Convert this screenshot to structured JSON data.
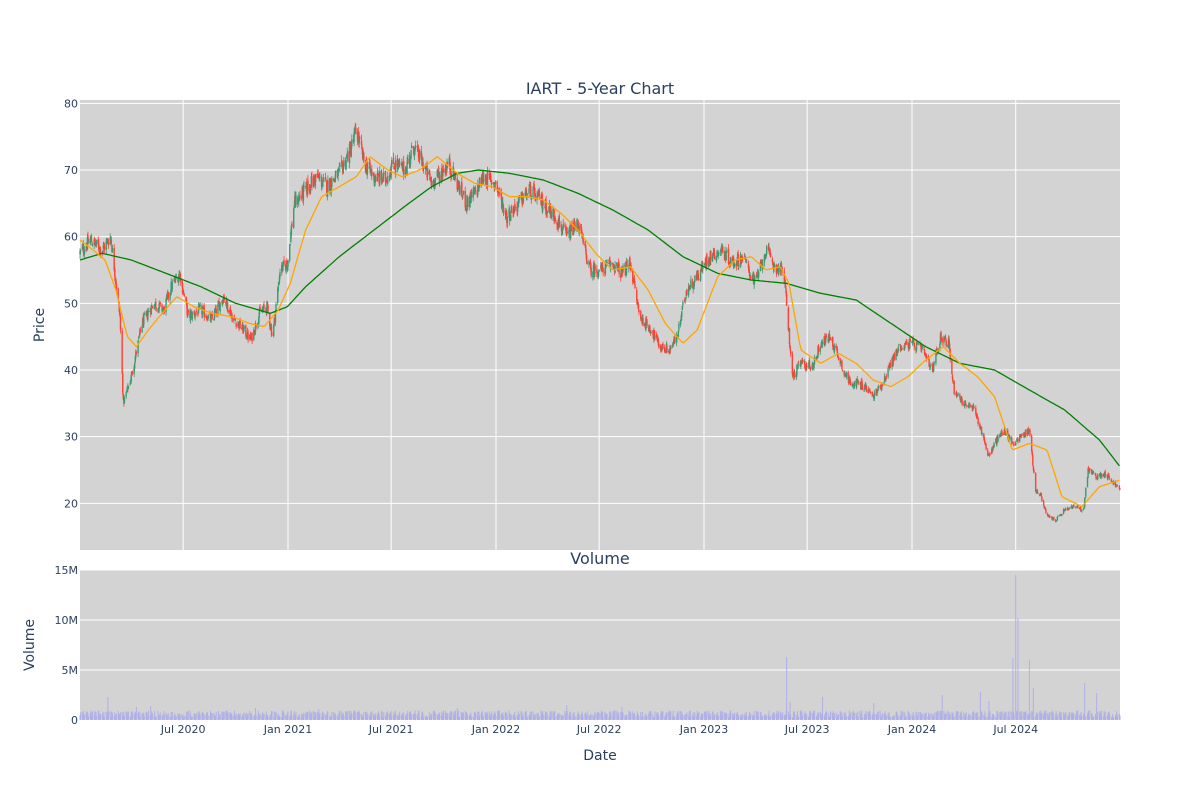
{
  "chart_data": [
    {
      "type": "candlestick",
      "title": "IART - 5-Year Chart",
      "ylabel": "Price",
      "ylim": [
        13,
        80.5
      ],
      "yticks": [
        20,
        30,
        40,
        50,
        60,
        70,
        80
      ],
      "grid": true,
      "legend": "none",
      "colors": {
        "up": "#3d9970",
        "down": "#ff4136",
        "ma_short": "#ffa500",
        "ma_long": "#008000",
        "plot_bg": "#d3d3d3"
      },
      "close_anchors": {
        "dates": [
          "2020-01-02",
          "2020-01-20",
          "2020-02-10",
          "2020-02-25",
          "2020-03-12",
          "2020-03-18",
          "2020-04-01",
          "2020-04-20",
          "2020-05-10",
          "2020-05-28",
          "2020-06-10",
          "2020-06-25",
          "2020-07-10",
          "2020-08-01",
          "2020-08-20",
          "2020-09-10",
          "2020-09-25",
          "2020-10-10",
          "2020-10-28",
          "2020-11-12",
          "2020-11-25",
          "2020-12-05",
          "2020-12-18",
          "2020-12-31",
          "2021-01-12",
          "2021-02-01",
          "2021-02-20",
          "2021-03-10",
          "2021-04-01",
          "2021-04-20",
          "2021-05-01",
          "2021-05-15",
          "2021-06-01",
          "2021-06-20",
          "2021-07-05",
          "2021-07-25",
          "2021-08-10",
          "2021-08-25",
          "2021-09-10",
          "2021-09-25",
          "2021-10-10",
          "2021-10-25",
          "2021-11-10",
          "2021-11-25",
          "2021-12-10",
          "2021-12-31",
          "2022-01-20",
          "2022-02-10",
          "2022-03-01",
          "2022-03-25",
          "2022-04-15",
          "2022-05-05",
          "2022-05-25",
          "2022-06-15",
          "2022-07-05",
          "2022-07-25",
          "2022-08-10",
          "2022-08-25",
          "2022-09-10",
          "2022-10-01",
          "2022-10-15",
          "2022-11-01",
          "2022-11-15",
          "2022-12-01",
          "2022-12-20",
          "2023-01-10",
          "2023-02-01",
          "2023-02-20",
          "2023-03-10",
          "2023-04-01",
          "2023-04-20",
          "2023-05-05",
          "2023-05-20",
          "2023-05-26",
          "2023-06-05",
          "2023-06-20",
          "2023-07-10",
          "2023-07-25",
          "2023-08-10",
          "2023-08-25",
          "2023-09-10",
          "2023-09-25",
          "2023-10-10",
          "2023-10-25",
          "2023-11-10",
          "2023-11-25",
          "2023-12-10",
          "2023-12-31",
          "2024-01-20",
          "2024-02-05",
          "2024-02-20",
          "2024-03-05",
          "2024-03-15",
          "2024-04-01",
          "2024-04-20",
          "2024-05-05",
          "2024-05-15",
          "2024-05-25",
          "2024-06-10",
          "2024-06-25",
          "2024-07-10",
          "2024-07-25",
          "2024-08-05",
          "2024-08-15",
          "2024-08-25",
          "2024-09-10",
          "2024-09-25",
          "2024-10-10",
          "2024-10-28",
          "2024-11-05",
          "2024-11-20",
          "2024-12-05",
          "2024-12-31"
        ],
        "close": [
          57.5,
          59.5,
          58.0,
          60.0,
          48.0,
          35.0,
          39.0,
          47.0,
          50.0,
          49.0,
          52.5,
          54.5,
          48.0,
          49.0,
          47.5,
          51.0,
          48.0,
          46.5,
          44.5,
          48.5,
          49.5,
          45.0,
          55.0,
          56.0,
          65.0,
          67.0,
          69.0,
          67.5,
          69.5,
          73.0,
          76.0,
          71.0,
          69.0,
          68.5,
          71.0,
          70.0,
          73.5,
          71.0,
          68.0,
          69.5,
          71.0,
          68.0,
          65.0,
          66.5,
          69.0,
          68.0,
          63.0,
          65.0,
          67.0,
          65.0,
          63.0,
          60.0,
          62.0,
          55.0,
          55.0,
          56.0,
          54.5,
          56.0,
          48.0,
          46.0,
          43.5,
          43.0,
          45.0,
          52.0,
          54.0,
          57.0,
          58.0,
          56.0,
          57.0,
          53.0,
          58.0,
          55.5,
          55.0,
          50.0,
          39.0,
          41.0,
          40.5,
          44.0,
          45.0,
          42.0,
          38.5,
          38.0,
          37.5,
          36.0,
          38.0,
          41.0,
          43.5,
          44.0,
          43.0,
          40.0,
          45.0,
          44.0,
          37.0,
          35.0,
          34.0,
          30.0,
          27.0,
          29.0,
          31.0,
          29.0,
          30.0,
          31.0,
          22.0,
          21.0,
          18.0,
          17.5,
          19.0,
          19.5,
          19.0,
          25.0,
          24.0,
          24.5,
          22.0
        ]
      },
      "ma_short_anchors": {
        "dates": [
          "2020-01-02",
          "2020-01-25",
          "2020-02-15",
          "2020-03-05",
          "2020-03-25",
          "2020-04-10",
          "2020-05-01",
          "2020-05-25",
          "2020-06-20",
          "2020-07-20",
          "2020-08-20",
          "2020-09-25",
          "2020-10-25",
          "2020-11-20",
          "2020-12-15",
          "2021-01-05",
          "2021-02-01",
          "2021-03-01",
          "2021-04-01",
          "2021-05-01",
          "2021-05-25",
          "2021-06-25",
          "2021-07-20",
          "2021-08-20",
          "2021-09-20",
          "2021-10-25",
          "2021-11-25",
          "2021-12-25",
          "2022-01-25",
          "2022-02-25",
          "2022-03-25",
          "2022-04-25",
          "2022-05-25",
          "2022-06-25",
          "2022-07-25",
          "2022-08-25",
          "2022-09-25",
          "2022-10-25",
          "2022-11-25",
          "2022-12-20",
          "2023-01-25",
          "2023-02-25",
          "2023-03-25",
          "2023-04-20",
          "2023-05-15",
          "2023-05-30",
          "2023-06-20",
          "2023-07-25",
          "2023-08-25",
          "2023-09-25",
          "2023-10-25",
          "2023-11-25",
          "2023-12-25",
          "2024-01-25",
          "2024-02-25",
          "2024-03-25",
          "2024-04-25",
          "2024-05-25",
          "2024-06-25",
          "2024-07-25",
          "2024-08-25",
          "2024-09-20",
          "2024-10-25",
          "2024-11-25",
          "2024-12-31"
        ],
        "values": [
          59.5,
          58.0,
          56.5,
          52.0,
          45.0,
          43.5,
          46.0,
          48.5,
          51.0,
          49.5,
          48.5,
          48.0,
          47.0,
          46.5,
          49.0,
          53.0,
          61.0,
          66.0,
          67.5,
          69.0,
          72.0,
          70.0,
          69.0,
          70.0,
          72.0,
          69.5,
          68.0,
          67.5,
          66.0,
          66.0,
          65.5,
          63.5,
          61.0,
          57.5,
          55.0,
          55.5,
          52.0,
          47.0,
          44.0,
          46.0,
          54.0,
          56.5,
          57.0,
          55.0,
          55.5,
          53.0,
          43.0,
          41.0,
          42.5,
          41.0,
          38.5,
          37.5,
          39.0,
          41.5,
          43.5,
          41.0,
          39.0,
          36.0,
          28.0,
          29.0,
          28.0,
          21.0,
          19.5,
          22.5,
          23.5
        ]
      },
      "ma_long_anchors": {
        "dates": [
          "2020-01-02",
          "2020-02-10",
          "2020-04-01",
          "2020-06-01",
          "2020-08-01",
          "2020-10-01",
          "2020-12-01",
          "2020-12-31",
          "2021-02-01",
          "2021-04-01",
          "2021-06-01",
          "2021-08-01",
          "2021-09-10",
          "2021-10-25",
          "2021-12-01",
          "2022-01-25",
          "2022-03-25",
          "2022-05-25",
          "2022-07-25",
          "2022-09-25",
          "2022-11-25",
          "2023-01-25",
          "2023-03-25",
          "2023-05-25",
          "2023-07-25",
          "2023-09-25",
          "2023-11-25",
          "2024-01-25",
          "2024-03-25",
          "2024-05-25",
          "2024-07-25",
          "2024-09-25",
          "2024-11-25",
          "2024-12-31"
        ],
        "values": [
          56.5,
          57.5,
          56.5,
          54.5,
          52.5,
          50.0,
          48.5,
          49.5,
          52.5,
          57.0,
          61.0,
          65.0,
          67.5,
          69.5,
          70.0,
          69.5,
          68.5,
          66.5,
          64.0,
          61.0,
          57.0,
          54.5,
          53.5,
          53.0,
          51.5,
          50.5,
          47.0,
          43.5,
          41.0,
          40.0,
          37.0,
          34.0,
          29.5,
          25.5
        ]
      },
      "date_range": [
        "2020-01-02",
        "2024-12-31"
      ]
    },
    {
      "type": "bar",
      "title": "Volume",
      "xlabel": "Date",
      "ylabel": "Volume",
      "ylim": [
        0,
        15000000
      ],
      "yticks": [
        0,
        5000000,
        10000000,
        15000000
      ],
      "ytick_labels": [
        "0",
        "5M",
        "10M",
        "15M"
      ],
      "xtick_labels": [
        "Jul 2020",
        "Jan 2021",
        "Jul 2021",
        "Jan 2022",
        "Jul 2022",
        "Jan 2023",
        "Jul 2023",
        "Jan 2024",
        "Jul 2024"
      ],
      "xtick_dates": [
        "2020-07-01",
        "2021-01-01",
        "2021-07-01",
        "2022-01-01",
        "2022-07-01",
        "2023-01-01",
        "2023-07-01",
        "2024-01-01",
        "2024-07-01"
      ],
      "grid": true,
      "colors": {
        "bar": "#b0b0e8",
        "plot_bg": "#d3d3d3"
      },
      "baseline_volume": 600000,
      "spikes": {
        "dates": [
          "2020-02-20",
          "2020-03-15",
          "2020-04-10",
          "2020-05-05",
          "2020-11-05",
          "2021-02-24",
          "2021-10-25",
          "2022-05-05",
          "2022-08-10",
          "2023-05-26",
          "2023-06-01",
          "2023-07-28",
          "2023-10-26",
          "2024-02-23",
          "2024-04-30",
          "2024-05-15",
          "2024-06-26",
          "2024-07-01",
          "2024-07-05",
          "2024-07-25",
          "2024-08-01",
          "2024-09-15",
          "2024-10-30",
          "2024-11-20"
        ],
        "values": [
          2300000,
          1500000,
          1300000,
          1400000,
          1200000,
          1100000,
          1200000,
          1500000,
          1300000,
          6300000,
          1800000,
          2300000,
          1700000,
          2500000,
          2800000,
          1900000,
          6200000,
          14500000,
          10200000,
          6000000,
          3200000,
          2000000,
          3700000,
          2700000
        ]
      }
    }
  ]
}
